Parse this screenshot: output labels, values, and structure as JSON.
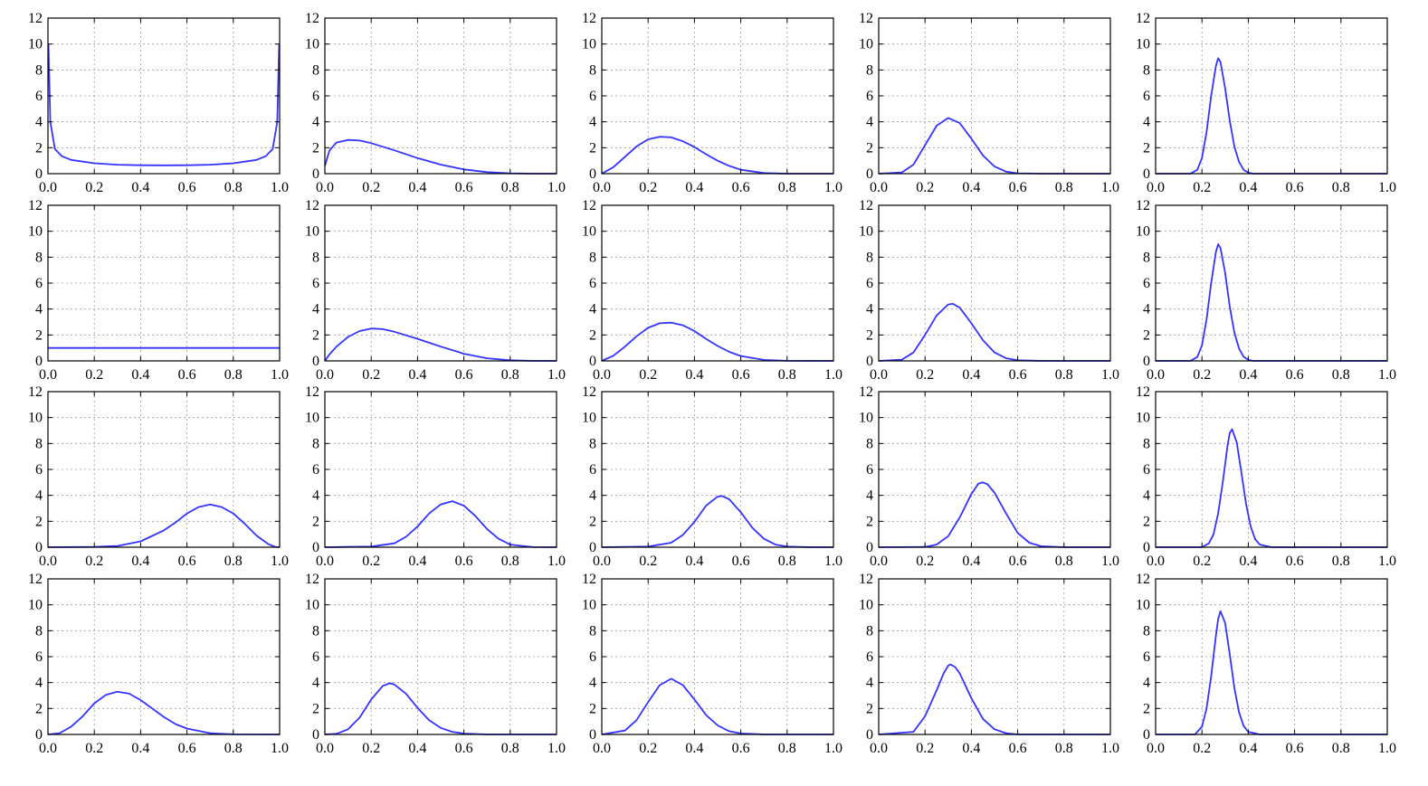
{
  "colors": {
    "curve": "#3333ff"
  },
  "chart_data": {
    "type": "line",
    "description_of_function": "beta-like probability density curves on [0,1], 4 rows x 5 columns",
    "layout": {
      "rows": 4,
      "cols": 5
    },
    "shared_axes": {
      "xlim": [
        0,
        1
      ],
      "ylim": [
        0,
        12
      ],
      "xticks": [
        "0.0",
        "0.2",
        "0.4",
        "0.6",
        "0.8",
        "1.0"
      ],
      "yticks": [
        "0",
        "2",
        "4",
        "6",
        "8",
        "10",
        "12"
      ],
      "grid": true
    },
    "panels": [
      {
        "id": "r1c1",
        "series": [
          {
            "x": [
              0.002,
              0.01,
              0.03,
              0.06,
              0.1,
              0.2,
              0.3,
              0.4,
              0.5,
              0.6,
              0.7,
              0.8,
              0.9,
              0.94,
              0.97,
              0.99,
              0.998
            ],
            "y": [
              10.0,
              4.0,
              1.9,
              1.35,
              1.06,
              0.8,
              0.69,
              0.65,
              0.64,
              0.65,
              0.69,
              0.8,
              1.06,
              1.35,
              1.9,
              4.0,
              10.0
            ]
          }
        ]
      },
      {
        "id": "r1c2",
        "series": [
          {
            "x": [
              0,
              0.02,
              0.05,
              0.1,
              0.15,
              0.2,
              0.3,
              0.4,
              0.5,
              0.6,
              0.7,
              0.8,
              0.9,
              1.0
            ],
            "y": [
              0.6,
              1.8,
              2.4,
              2.6,
              2.55,
              2.35,
              1.8,
              1.2,
              0.7,
              0.33,
              0.12,
              0.03,
              0.0,
              0.0
            ]
          }
        ]
      },
      {
        "id": "r1c3",
        "series": [
          {
            "x": [
              0,
              0.05,
              0.1,
              0.15,
              0.2,
              0.25,
              0.3,
              0.35,
              0.4,
              0.45,
              0.5,
              0.55,
              0.6,
              0.7,
              0.8,
              0.9,
              1.0
            ],
            "y": [
              0,
              0.5,
              1.3,
              2.1,
              2.65,
              2.85,
              2.8,
              2.5,
              2.05,
              1.5,
              1.0,
              0.6,
              0.3,
              0.05,
              0.0,
              0.0,
              0.0
            ]
          }
        ]
      },
      {
        "id": "r1c4",
        "series": [
          {
            "x": [
              0,
              0.1,
              0.15,
              0.2,
              0.25,
              0.3,
              0.35,
              0.4,
              0.45,
              0.5,
              0.55,
              0.6,
              0.7,
              0.8,
              0.9,
              1.0
            ],
            "y": [
              0,
              0.1,
              0.7,
              2.2,
              3.7,
              4.3,
              3.9,
              2.7,
              1.4,
              0.55,
              0.15,
              0.03,
              0.0,
              0.0,
              0.0,
              0.0
            ]
          }
        ]
      },
      {
        "id": "r1c5",
        "series": [
          {
            "x": [
              0,
              0.15,
              0.18,
              0.2,
              0.22,
              0.24,
              0.26,
              0.27,
              0.28,
              0.3,
              0.32,
              0.34,
              0.36,
              0.38,
              0.4,
              0.42,
              0.5,
              1.0
            ],
            "y": [
              0,
              0.0,
              0.3,
              1.2,
              3.2,
              6.0,
              8.3,
              8.9,
              8.6,
              6.6,
              4.1,
              2.1,
              0.9,
              0.3,
              0.08,
              0.0,
              0.0,
              0.0
            ]
          }
        ]
      },
      {
        "id": "r2c1",
        "series": [
          {
            "x": [
              0,
              0.2,
              0.4,
              0.6,
              0.8,
              1.0
            ],
            "y": [
              1,
              1,
              1,
              1,
              1,
              1
            ]
          }
        ]
      },
      {
        "id": "r2c2",
        "series": [
          {
            "x": [
              0,
              0.02,
              0.05,
              0.1,
              0.15,
              0.2,
              0.25,
              0.3,
              0.4,
              0.5,
              0.6,
              0.7,
              0.8,
              0.9,
              1.0
            ],
            "y": [
              0,
              0.5,
              1.1,
              1.85,
              2.3,
              2.5,
              2.45,
              2.25,
              1.7,
              1.1,
              0.55,
              0.2,
              0.05,
              0.0,
              0.0
            ]
          }
        ]
      },
      {
        "id": "r2c3",
        "series": [
          {
            "x": [
              0,
              0.05,
              0.1,
              0.15,
              0.2,
              0.25,
              0.3,
              0.35,
              0.4,
              0.45,
              0.5,
              0.55,
              0.6,
              0.7,
              0.8,
              0.9,
              1.0
            ],
            "y": [
              0,
              0.4,
              1.1,
              1.9,
              2.55,
              2.9,
              2.95,
              2.75,
              2.3,
              1.7,
              1.15,
              0.7,
              0.38,
              0.08,
              0.01,
              0.0,
              0.0
            ]
          }
        ]
      },
      {
        "id": "r2c4",
        "series": [
          {
            "x": [
              0,
              0.1,
              0.15,
              0.2,
              0.25,
              0.3,
              0.32,
              0.35,
              0.4,
              0.45,
              0.5,
              0.55,
              0.6,
              0.7,
              0.8,
              1.0
            ],
            "y": [
              0,
              0.1,
              0.65,
              2.0,
              3.5,
              4.35,
              4.4,
              4.1,
              2.9,
              1.6,
              0.65,
              0.2,
              0.05,
              0.0,
              0.0,
              0.0
            ]
          }
        ]
      },
      {
        "id": "r2c5",
        "series": [
          {
            "x": [
              0,
              0.15,
              0.18,
              0.2,
              0.22,
              0.24,
              0.26,
              0.27,
              0.28,
              0.3,
              0.32,
              0.34,
              0.36,
              0.38,
              0.4,
              0.42,
              0.5,
              1.0
            ],
            "y": [
              0,
              0.0,
              0.3,
              1.2,
              3.2,
              6.0,
              8.4,
              9.0,
              8.7,
              6.8,
              4.2,
              2.2,
              0.95,
              0.32,
              0.08,
              0.0,
              0.0,
              0.0
            ]
          }
        ]
      },
      {
        "id": "r3c1",
        "series": [
          {
            "x": [
              0,
              0.2,
              0.3,
              0.4,
              0.5,
              0.55,
              0.6,
              0.65,
              0.7,
              0.75,
              0.8,
              0.85,
              0.9,
              0.95,
              0.98,
              1.0
            ],
            "y": [
              0,
              0.02,
              0.1,
              0.45,
              1.3,
              1.9,
              2.6,
              3.1,
              3.3,
              3.1,
              2.6,
              1.8,
              0.9,
              0.25,
              0.03,
              0.0
            ]
          }
        ]
      },
      {
        "id": "r3c2",
        "series": [
          {
            "x": [
              0,
              0.2,
              0.3,
              0.35,
              0.4,
              0.45,
              0.5,
              0.55,
              0.6,
              0.65,
              0.7,
              0.75,
              0.8,
              0.9,
              1.0
            ],
            "y": [
              0,
              0.05,
              0.3,
              0.8,
              1.6,
              2.6,
              3.3,
              3.55,
              3.2,
              2.4,
              1.4,
              0.65,
              0.2,
              0.01,
              0.0
            ]
          }
        ]
      },
      {
        "id": "r3c3",
        "series": [
          {
            "x": [
              0,
              0.2,
              0.3,
              0.35,
              0.4,
              0.45,
              0.5,
              0.52,
              0.55,
              0.6,
              0.65,
              0.7,
              0.75,
              0.8,
              0.9,
              1.0
            ],
            "y": [
              0,
              0.05,
              0.35,
              0.95,
              1.95,
              3.2,
              3.9,
              3.95,
              3.7,
              2.7,
              1.5,
              0.65,
              0.2,
              0.05,
              0.0,
              0.0
            ]
          }
        ]
      },
      {
        "id": "r3c4",
        "series": [
          {
            "x": [
              0,
              0.2,
              0.25,
              0.3,
              0.35,
              0.4,
              0.43,
              0.45,
              0.47,
              0.5,
              0.55,
              0.6,
              0.65,
              0.7,
              0.8,
              1.0
            ],
            "y": [
              0,
              0.02,
              0.2,
              0.85,
              2.3,
              4.1,
              4.9,
              5.0,
              4.85,
              4.2,
              2.6,
              1.1,
              0.35,
              0.08,
              0.0,
              0.0
            ]
          }
        ]
      },
      {
        "id": "r3c5",
        "series": [
          {
            "x": [
              0,
              0.2,
              0.23,
              0.25,
              0.27,
              0.29,
              0.31,
              0.32,
              0.33,
              0.35,
              0.37,
              0.39,
              0.41,
              0.43,
              0.45,
              0.5,
              1.0
            ],
            "y": [
              0,
              0.0,
              0.3,
              1.0,
              2.6,
              5.0,
              7.8,
              8.8,
              9.1,
              8.1,
              5.8,
              3.4,
              1.6,
              0.6,
              0.2,
              0.0,
              0.0
            ]
          }
        ]
      },
      {
        "id": "r4c1",
        "series": [
          {
            "x": [
              0,
              0.05,
              0.1,
              0.15,
              0.2,
              0.25,
              0.3,
              0.35,
              0.4,
              0.45,
              0.5,
              0.55,
              0.6,
              0.7,
              0.8,
              1.0
            ],
            "y": [
              0,
              0.1,
              0.6,
              1.4,
              2.4,
              3.05,
              3.3,
              3.15,
              2.65,
              2.0,
              1.35,
              0.8,
              0.45,
              0.1,
              0.01,
              0.0
            ]
          }
        ]
      },
      {
        "id": "r4c2",
        "series": [
          {
            "x": [
              0,
              0.05,
              0.1,
              0.15,
              0.2,
              0.25,
              0.28,
              0.3,
              0.35,
              0.4,
              0.45,
              0.5,
              0.55,
              0.6,
              0.7,
              1.0
            ],
            "y": [
              0,
              0.05,
              0.4,
              1.3,
              2.7,
              3.75,
              3.95,
              3.85,
              3.15,
              2.05,
              1.1,
              0.5,
              0.2,
              0.07,
              0.0,
              0.0
            ]
          }
        ]
      },
      {
        "id": "r4c3",
        "series": [
          {
            "x": [
              0,
              0.1,
              0.15,
              0.2,
              0.25,
              0.3,
              0.35,
              0.4,
              0.45,
              0.5,
              0.55,
              0.6,
              0.7,
              1.0
            ],
            "y": [
              0,
              0.3,
              1.1,
              2.5,
              3.8,
              4.3,
              3.8,
              2.7,
              1.5,
              0.7,
              0.25,
              0.08,
              0.0,
              0.0
            ]
          }
        ]
      },
      {
        "id": "r4c4",
        "series": [
          {
            "x": [
              0,
              0.15,
              0.2,
              0.25,
              0.28,
              0.3,
              0.31,
              0.33,
              0.35,
              0.4,
              0.45,
              0.5,
              0.55,
              0.6,
              0.7,
              1.0
            ],
            "y": [
              0,
              0.2,
              1.4,
              3.4,
              4.7,
              5.3,
              5.4,
              5.2,
              4.7,
              2.8,
              1.2,
              0.4,
              0.1,
              0.0,
              0.0,
              0.0
            ]
          }
        ]
      },
      {
        "id": "r4c5",
        "series": [
          {
            "x": [
              0,
              0.17,
              0.2,
              0.22,
              0.24,
              0.26,
              0.27,
              0.28,
              0.3,
              0.32,
              0.34,
              0.36,
              0.38,
              0.4,
              0.45,
              1.0
            ],
            "y": [
              0,
              0.0,
              0.6,
              2.0,
              4.5,
              7.6,
              8.9,
              9.5,
              8.6,
              6.2,
              3.6,
              1.7,
              0.65,
              0.2,
              0.0,
              0.0
            ]
          }
        ]
      }
    ]
  }
}
